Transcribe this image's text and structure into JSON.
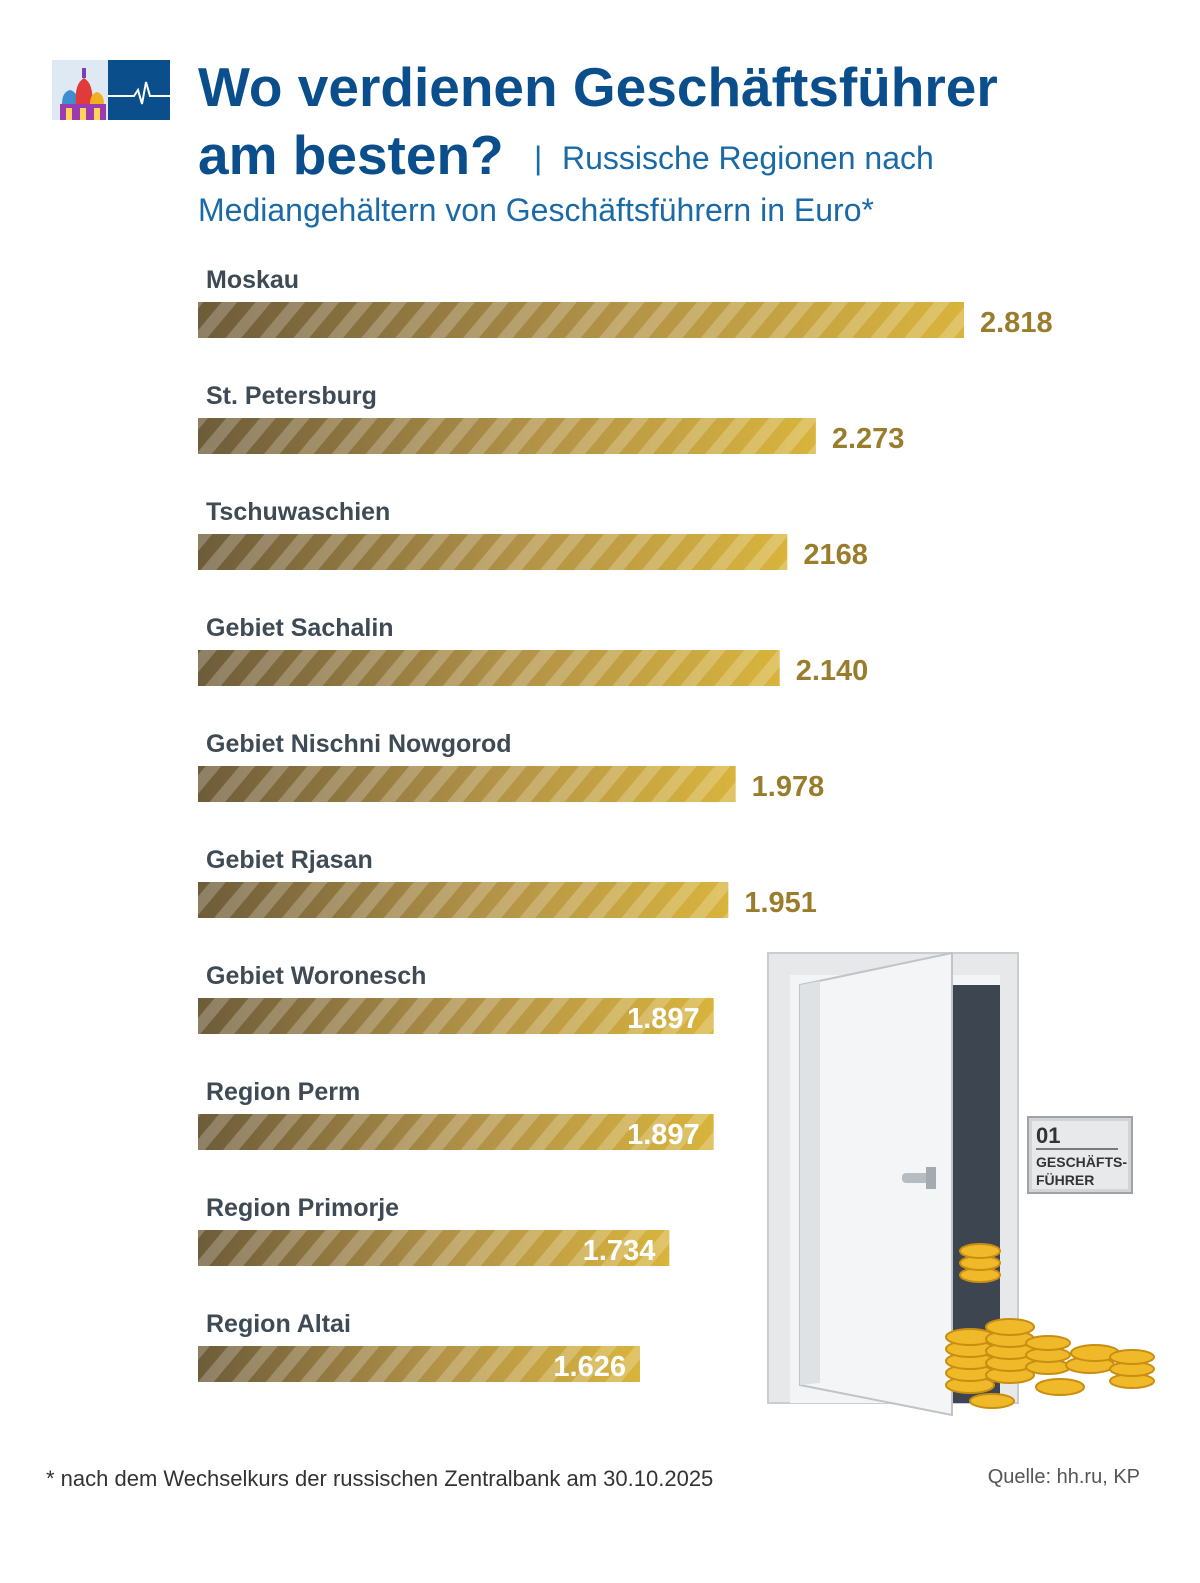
{
  "title": {
    "line1": "Wo verdienen Geschäftsführer",
    "line2": "am besten?",
    "separator": "|",
    "subtitle_line1": "Russische Regionen nach",
    "subtitle_line2": "Mediangehältern von Geschäftsführern in Euro*"
  },
  "chart_data": {
    "type": "bar",
    "orientation": "horizontal",
    "title": "Wo verdienen Geschäftsführer am besten?",
    "subtitle": "Russische Regionen nach Mediangehältern von Geschäftsführern in Euro*",
    "unit": "Euro",
    "categories": [
      "Moskau",
      "St. Petersburg",
      "Tschuwaschien",
      "Gebiet Sachalin",
      "Gebiet Nischni Nowgorod",
      "Gebiet Rjasan",
      "Gebiet Woronesch",
      "Region Perm",
      "Region Primorje",
      "Region Altai"
    ],
    "values": [
      2818,
      2273,
      2168,
      2140,
      1978,
      1951,
      1897,
      1897,
      1734,
      1626
    ],
    "value_labels": [
      "2.818",
      "2.273",
      "2168",
      "2.140",
      "1.978",
      "1.951",
      "1.897",
      "1.897",
      "1.734",
      "1.626"
    ],
    "value_label_inside": [
      false,
      false,
      false,
      false,
      false,
      false,
      true,
      true,
      true,
      true
    ],
    "xlim": [
      0,
      2818
    ],
    "grid": false,
    "legend": "none"
  },
  "illustration": {
    "plate_number": "01",
    "plate_line1": "GESCHÄFTS-",
    "plate_line2": "FÜHRER"
  },
  "footnote": "* nach dem Wechselkurs der russischen Zentralbank am 30.10.2025",
  "source": "Quelle: hh.ru, KP",
  "colors": {
    "title": "#0b4e8c",
    "subtitle": "#1a6aa8",
    "bar_dark": "#6e5c3a",
    "bar_light": "#d8b43c",
    "value_outside": "#9a7d2c",
    "value_inside": "#ffffff"
  }
}
